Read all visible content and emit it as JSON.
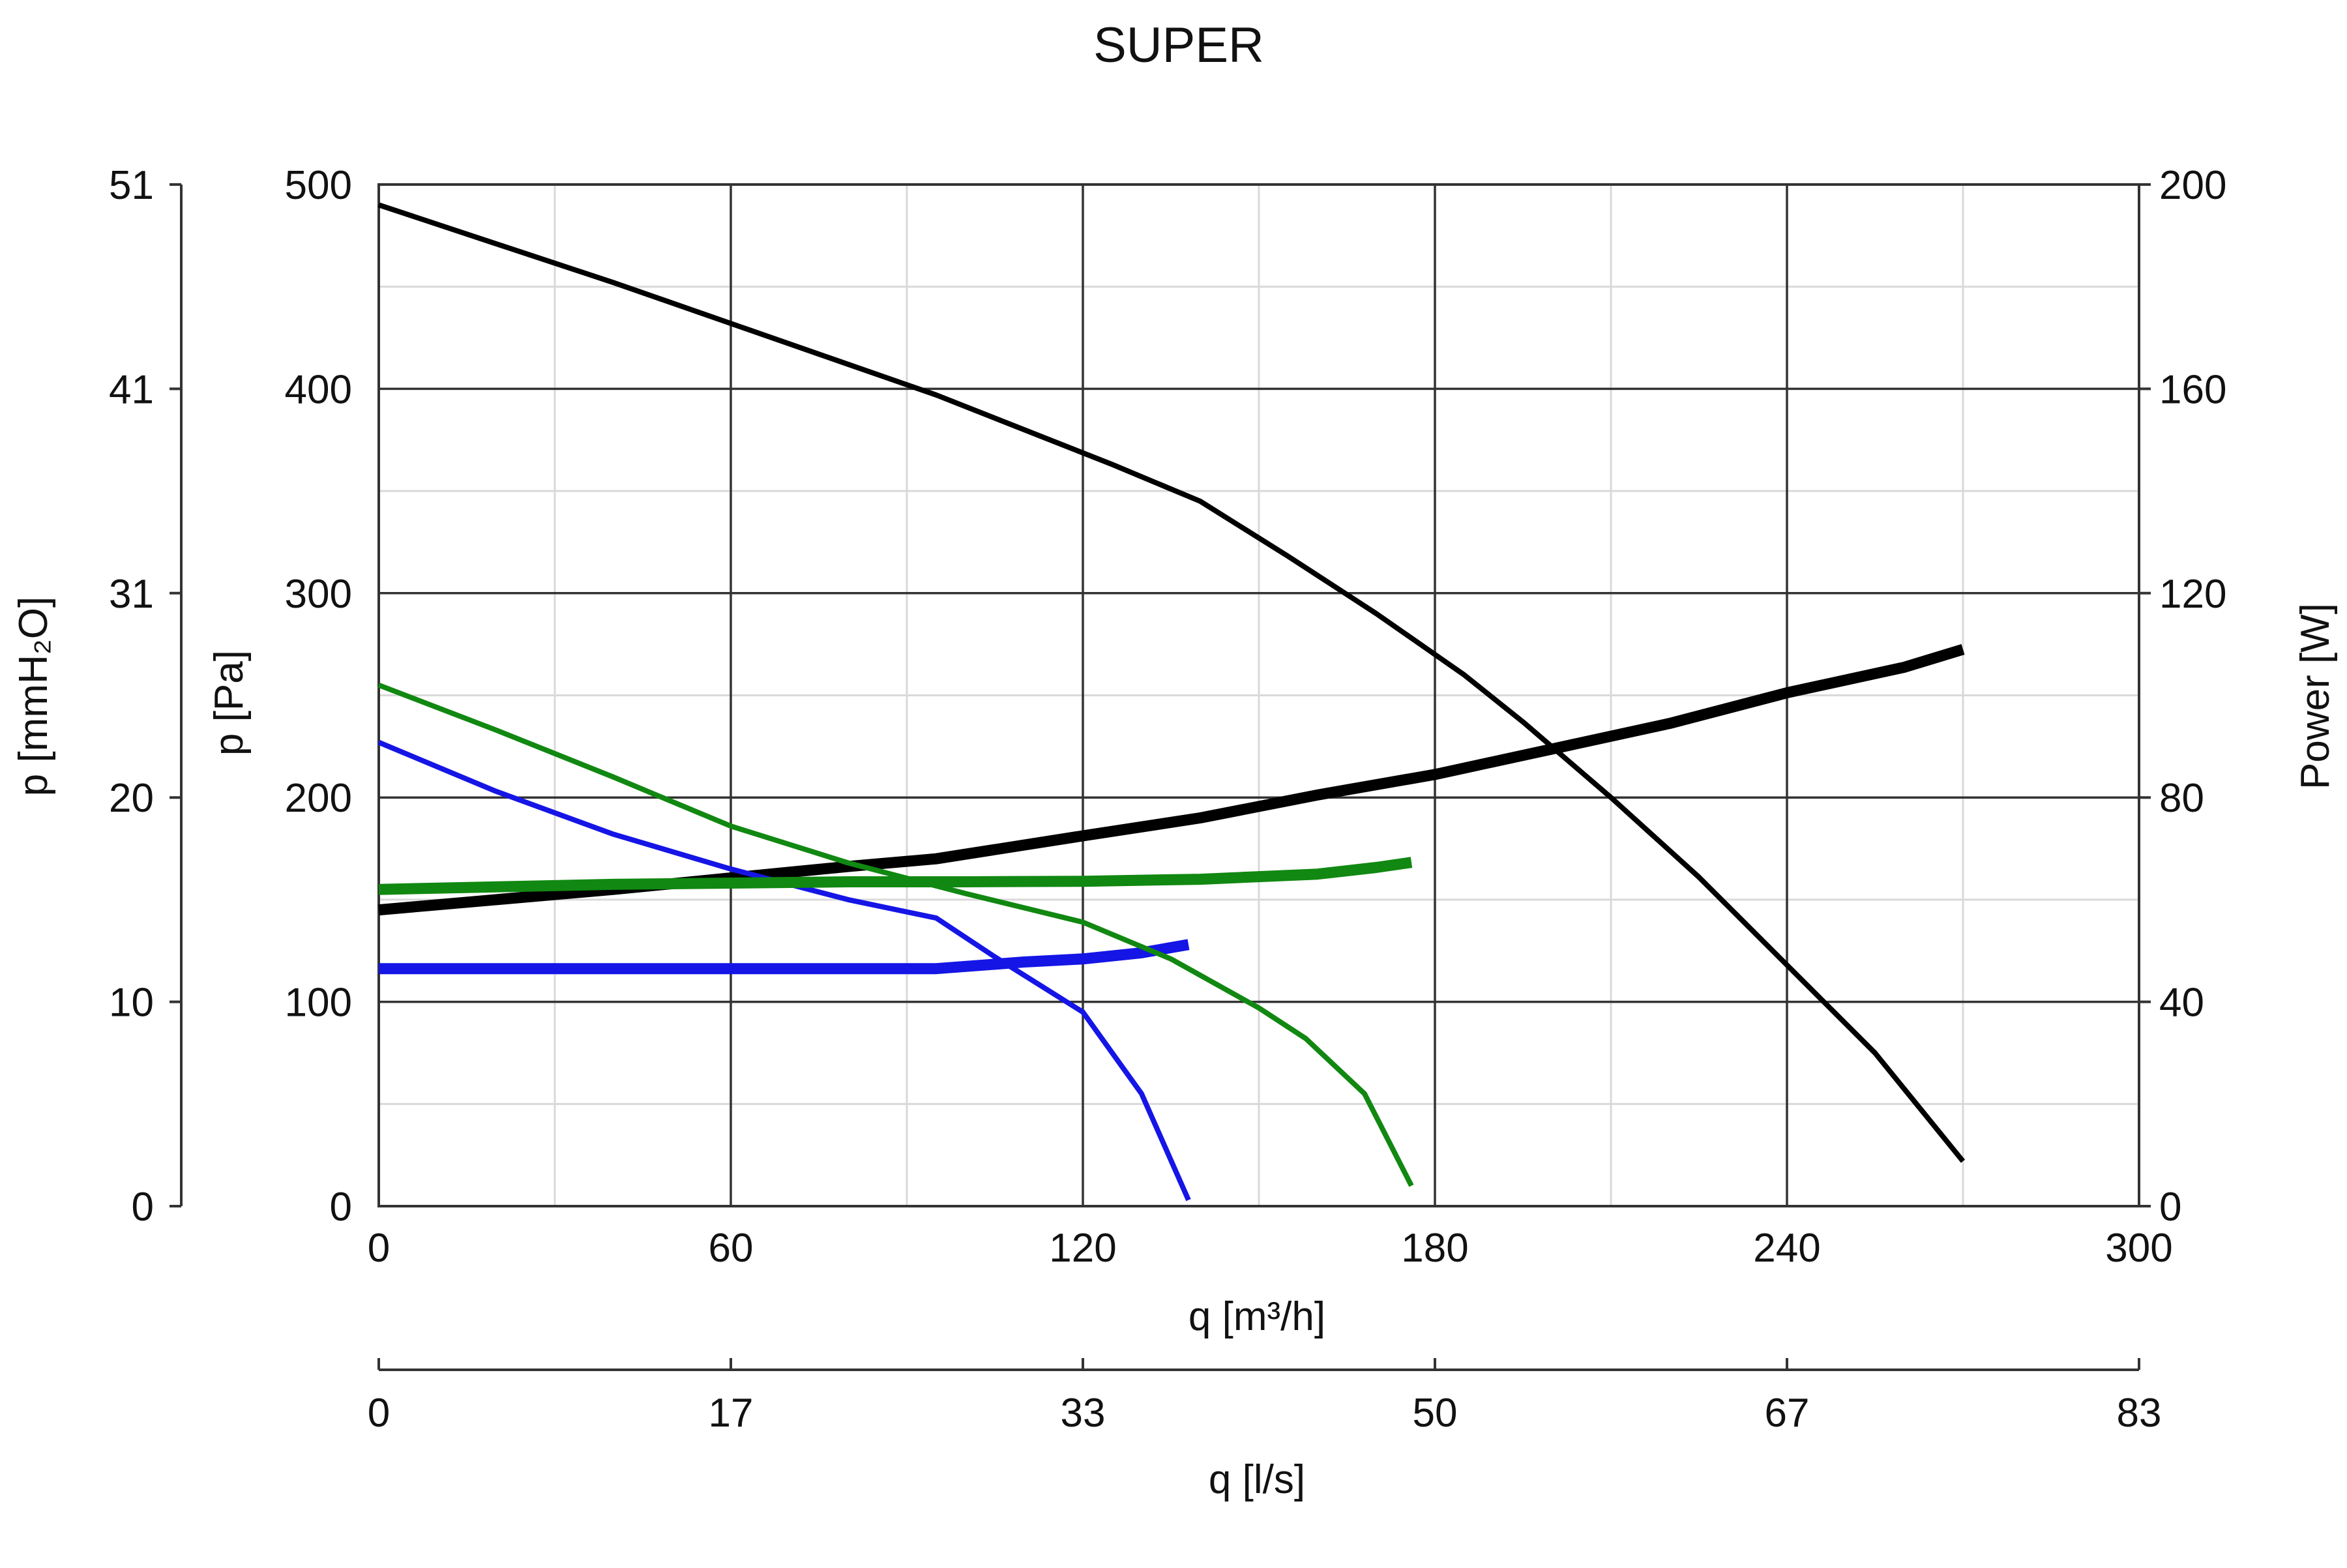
{
  "chart_data": {
    "type": "line",
    "title": "SUPER",
    "grid": true,
    "x_axis_primary": {
      "label": "q [m³/h]",
      "range": [
        0,
        300
      ],
      "ticks": [
        "0",
        "60",
        "120",
        "180",
        "240",
        "300"
      ]
    },
    "x_axis_secondary": {
      "label": "q [l/s]",
      "ticks": [
        "0",
        "17",
        "33",
        "50",
        "67",
        "83"
      ]
    },
    "y_axis_primary": {
      "label": "p [Pa]",
      "range": [
        0,
        500
      ],
      "ticks": [
        "0",
        "100",
        "200",
        "300",
        "400",
        "500"
      ]
    },
    "y_axis_secondary_left": {
      "label": "p [mmH₂O]",
      "ticks": [
        "0",
        "10",
        "20",
        "31",
        "41",
        "51"
      ]
    },
    "y_axis_right": {
      "label": "Power [W]",
      "range": [
        0,
        200
      ],
      "ticks": [
        "0",
        "40",
        "80",
        "120",
        "160",
        "200"
      ]
    },
    "series": [
      {
        "axis": "pressure",
        "color": "#000000",
        "weight": "thin",
        "points": [
          [
            0,
            490
          ],
          [
            20,
            471
          ],
          [
            40,
            452
          ],
          [
            60,
            432
          ],
          [
            80,
            412
          ],
          [
            95,
            397
          ],
          [
            110,
            380
          ],
          [
            125,
            363
          ],
          [
            140,
            345
          ],
          [
            155,
            318
          ],
          [
            170,
            290
          ],
          [
            185,
            260
          ],
          [
            195,
            237
          ],
          [
            210,
            200
          ],
          [
            225,
            161
          ],
          [
            240,
            118
          ],
          [
            255,
            75
          ],
          [
            270,
            22
          ]
        ]
      },
      {
        "axis": "power",
        "color": "#000000",
        "weight": "thick",
        "points": [
          [
            0,
            58
          ],
          [
            40,
            62
          ],
          [
            80,
            66.5
          ],
          [
            95,
            68
          ],
          [
            120,
            72.5
          ],
          [
            140,
            76
          ],
          [
            160,
            80.5
          ],
          [
            180,
            84.5
          ],
          [
            200,
            89.5
          ],
          [
            220,
            94.5
          ],
          [
            240,
            100.5
          ],
          [
            260,
            105.5
          ],
          [
            270,
            109
          ]
        ]
      },
      {
        "axis": "pressure",
        "color": "#1515e6",
        "weight": "thin",
        "points": [
          [
            0,
            227
          ],
          [
            20,
            203
          ],
          [
            40,
            182
          ],
          [
            60,
            165
          ],
          [
            80,
            150
          ],
          [
            95,
            141
          ],
          [
            105,
            122
          ],
          [
            120,
            95
          ],
          [
            130,
            55
          ],
          [
            138,
            3
          ]
        ]
      },
      {
        "axis": "power",
        "color": "#1515e6",
        "weight": "thick",
        "points": [
          [
            0,
            46.5
          ],
          [
            40,
            46.5
          ],
          [
            80,
            46.5
          ],
          [
            95,
            46.5
          ],
          [
            110,
            47.8
          ],
          [
            120,
            48.4
          ],
          [
            130,
            49.6
          ],
          [
            138,
            51.2
          ]
        ]
      },
      {
        "axis": "pressure",
        "color": "#118811",
        "weight": "thin",
        "points": [
          [
            0,
            255
          ],
          [
            20,
            233
          ],
          [
            40,
            210
          ],
          [
            60,
            186
          ],
          [
            80,
            168
          ],
          [
            100,
            153
          ],
          [
            120,
            139
          ],
          [
            135,
            121
          ],
          [
            150,
            97
          ],
          [
            158,
            82
          ],
          [
            168,
            55
          ],
          [
            176,
            10
          ]
        ]
      },
      {
        "axis": "power",
        "color": "#118811",
        "weight": "thick",
        "points": [
          [
            0,
            62
          ],
          [
            40,
            63
          ],
          [
            80,
            63.5
          ],
          [
            100,
            63.5
          ],
          [
            120,
            63.6
          ],
          [
            140,
            64
          ],
          [
            160,
            65
          ],
          [
            170,
            66.3
          ],
          [
            176,
            67.3
          ]
        ]
      }
    ]
  }
}
